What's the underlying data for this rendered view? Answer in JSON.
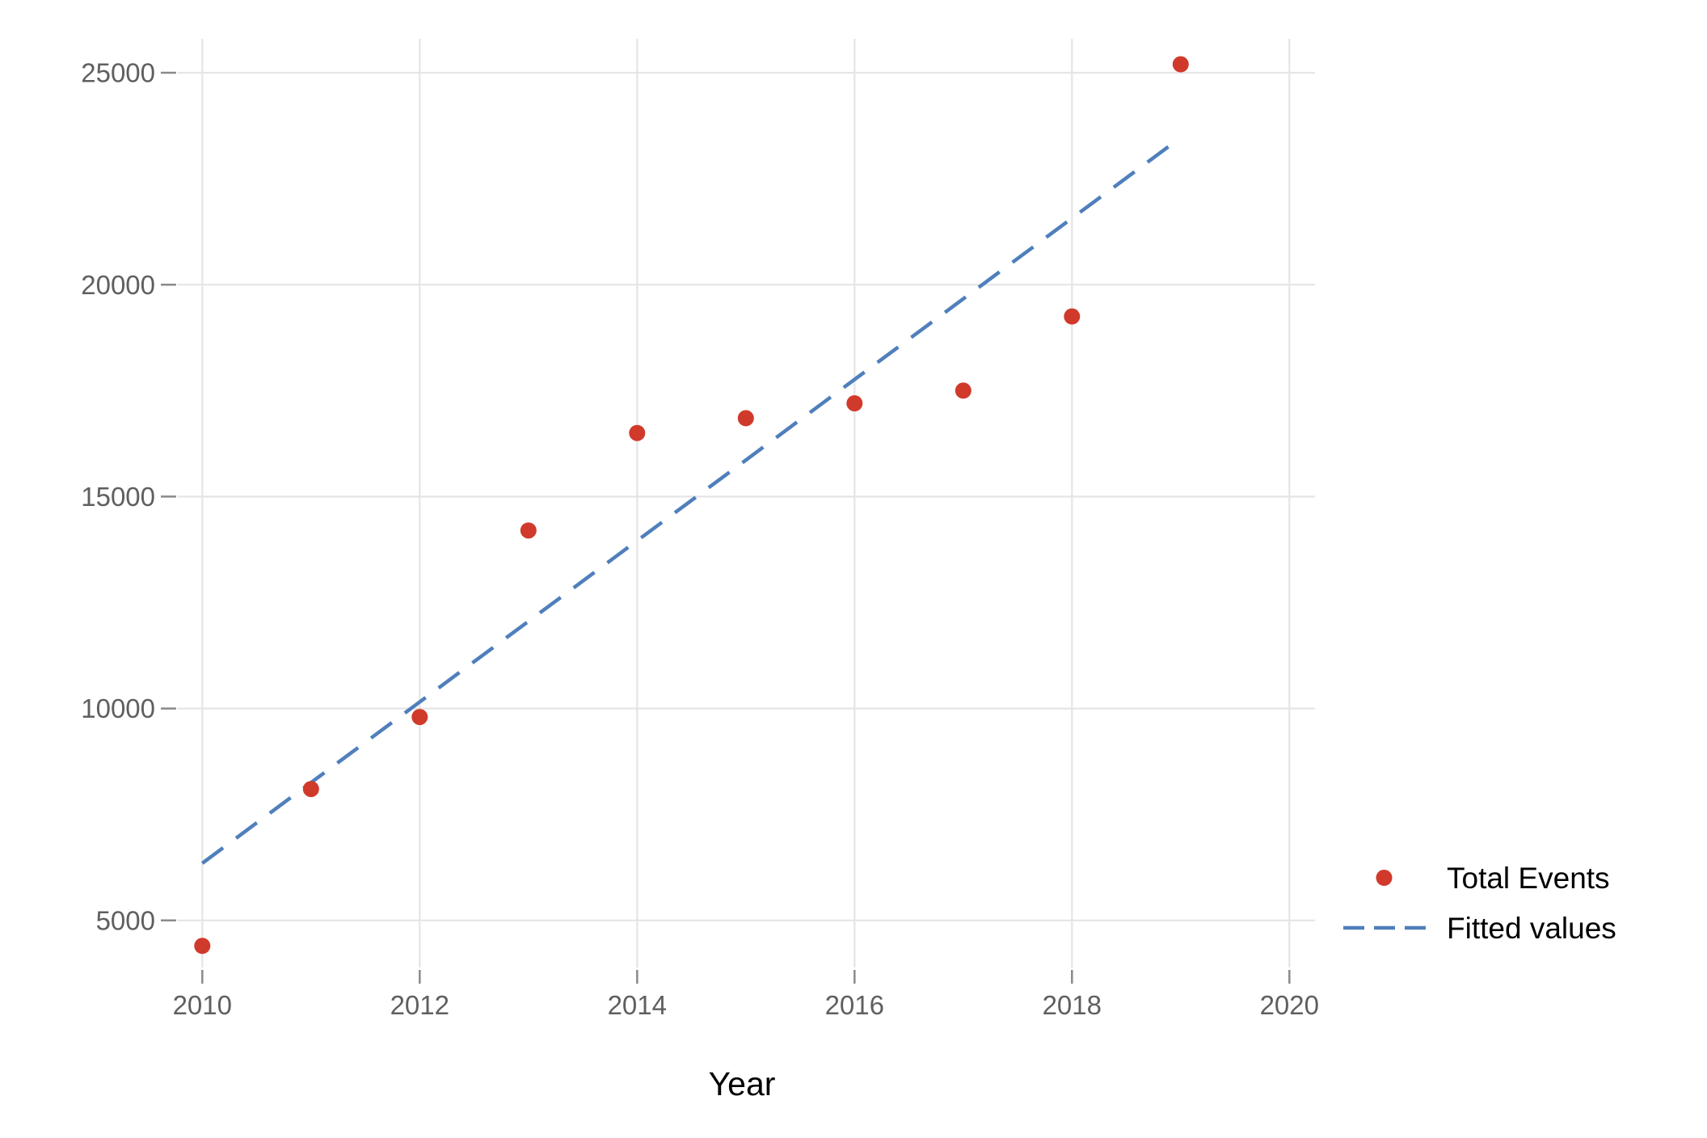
{
  "figure": {
    "background_color": "#ffffff",
    "title": ""
  },
  "chart_data": {
    "type": "scatter",
    "title": "",
    "xlabel": "Year",
    "ylabel": "",
    "xlim": [
      2009.7,
      2020.2
    ],
    "ylim": [
      3900,
      25800
    ],
    "grid": true,
    "legend_position": "right-bottom",
    "x_ticks": [
      "2010",
      "2012",
      "2014",
      "2016",
      "2018",
      "2020"
    ],
    "x_tick_values": [
      2010,
      2012,
      2014,
      2016,
      2018,
      2020
    ],
    "y_ticks": [
      "5000",
      "10000",
      "15000",
      "20000",
      "25000"
    ],
    "y_tick_values": [
      5000,
      10000,
      15000,
      20000,
      25000
    ],
    "series": [
      {
        "name": "Total Events",
        "type": "scatter",
        "marker": "circle",
        "color": "#d03a2b",
        "x": [
          2010,
          2011,
          2012,
          2013,
          2014,
          2015,
          2016,
          2017,
          2018,
          2019
        ],
        "y": [
          4400,
          8100,
          9800,
          14200,
          16500,
          16850,
          17200,
          17500,
          19250,
          25200
        ]
      },
      {
        "name": "Fitted values",
        "type": "line",
        "line_style": "dashed",
        "color": "#4f7fbc",
        "x": [
          2010,
          2019
        ],
        "y": [
          6350,
          23470
        ]
      }
    ],
    "style_colors": {
      "gridline": "#e5e5e5",
      "tick_mark": "#8a8a8a",
      "tick_label": "#5f5f5f",
      "axis_title": "#000000",
      "legend_text": "#000000"
    }
  }
}
